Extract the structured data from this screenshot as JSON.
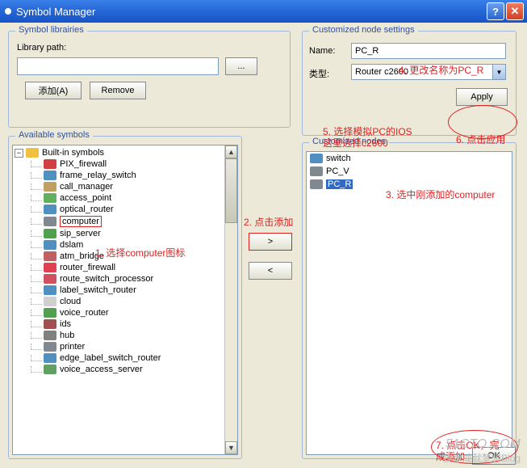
{
  "window": {
    "title": "Symbol Manager"
  },
  "libraries": {
    "legend": "Symbol librairies",
    "path_label": "Library path:",
    "path_value": "",
    "browse_label": "...",
    "add_label": "添加(A)",
    "remove_label": "Remove"
  },
  "available": {
    "legend": "Available symbols",
    "root": {
      "label": "Built-in symbols",
      "expanded": true,
      "icon_color": "#f0c040"
    },
    "items": [
      {
        "label": "PIX_firewall",
        "icon_color": "#d04040"
      },
      {
        "label": "frame_relay_switch",
        "icon_color": "#5090c0"
      },
      {
        "label": "call_manager",
        "icon_color": "#c0a060"
      },
      {
        "label": "access_point",
        "icon_color": "#60b060"
      },
      {
        "label": "optical_router",
        "icon_color": "#5090c0"
      },
      {
        "label": "computer",
        "icon_color": "#808890",
        "highlight": true
      },
      {
        "label": "sip_server",
        "icon_color": "#50a050"
      },
      {
        "label": "dslam",
        "icon_color": "#5090c0"
      },
      {
        "label": "atm_bridge",
        "icon_color": "#c06060"
      },
      {
        "label": "router_firewall",
        "icon_color": "#e04050"
      },
      {
        "label": "route_switch_processor",
        "icon_color": "#d05060"
      },
      {
        "label": "label_switch_router",
        "icon_color": "#5090c0"
      },
      {
        "label": "cloud",
        "icon_color": "#d0d0d0"
      },
      {
        "label": "voice_router",
        "icon_color": "#50a050"
      },
      {
        "label": "ids",
        "icon_color": "#a05050"
      },
      {
        "label": "hub",
        "icon_color": "#808080"
      },
      {
        "label": "printer",
        "icon_color": "#808890"
      },
      {
        "label": "edge_label_switch_router",
        "icon_color": "#5090c0"
      },
      {
        "label": "voice_access_server",
        "icon_color": "#60a060"
      }
    ]
  },
  "transfer": {
    "add_label": ">",
    "remove_label": "<"
  },
  "settings": {
    "legend": "Customized node settings",
    "name_label": "Name:",
    "name_value": "PC_R",
    "type_label": "类型:",
    "type_value": "Router c2600",
    "apply_label": "Apply"
  },
  "customized": {
    "legend": "Customized nodes",
    "items": [
      {
        "label": "switch",
        "icon_color": "#5090c0",
        "selected": false
      },
      {
        "label": "PC_V",
        "icon_color": "#808890",
        "selected": false
      },
      {
        "label": "PC_R",
        "icon_color": "#808890",
        "selected": true
      }
    ]
  },
  "ok_label": "OK",
  "annotations": {
    "a1": "1. 选择computer图标",
    "a2": "2. 点击添加",
    "a3": "3. 选中刚添加的computer",
    "a4": "4. 更改名称为PC_R",
    "a5a": "5. 选择模拟PC的IOS",
    "a5b": "这里选择c2600",
    "a6": "6. 点击应用",
    "a7a": "7. 点击OK，完",
    "a7b": "成添加"
  },
  "watermark": {
    "line1": "51CTO.COM",
    "line2": "技术成就梦想Blog"
  }
}
